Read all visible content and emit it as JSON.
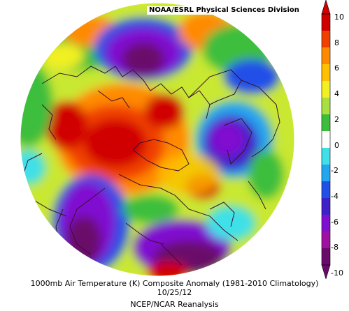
{
  "credit": "NOAA/ESRL Physical Sciences Division",
  "caption": {
    "line1": "1000mb Air Temperature (K) Composite Anomaly (1981-2010 Climatology)",
    "line2": "10/25/12",
    "line3": "NCEP/NCAR Reanalysis"
  },
  "colorbar": {
    "ticks": [
      "10",
      "8",
      "6",
      "4",
      "2",
      "0",
      "-2",
      "-4",
      "-6",
      "-8",
      "-10"
    ],
    "colors": [
      "#d10000",
      "#f04000",
      "#ff8a00",
      "#ffc000",
      "#f2f020",
      "#a8e040",
      "#3cbe3c",
      "#ffffff",
      "#3fe0e8",
      "#22a6f0",
      "#2050e8",
      "#4020c8",
      "#8010d0",
      "#a010a0",
      "#6a0a6a"
    ]
  },
  "icons": {
    "map": "polar-stereographic-map-icon",
    "colorbar": "colorbar-icon"
  }
}
